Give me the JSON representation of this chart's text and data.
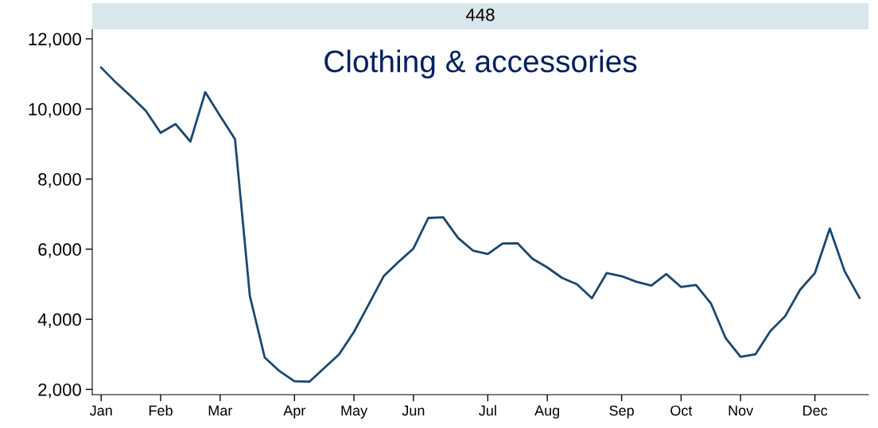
{
  "chart_data": {
    "type": "line",
    "title": "448",
    "subtitle": "Clothing & accessories",
    "categories": [
      "Jan",
      null,
      null,
      null,
      "Feb",
      null,
      null,
      null,
      "Mar",
      null,
      null,
      null,
      null,
      "Apr",
      null,
      null,
      null,
      "May",
      null,
      null,
      null,
      "Jun",
      null,
      null,
      null,
      null,
      "Jul",
      null,
      null,
      null,
      "Aug",
      null,
      null,
      null,
      null,
      "Sep",
      null,
      null,
      null,
      "Oct",
      null,
      null,
      null,
      "Nov",
      null,
      null,
      null,
      null,
      "Dec",
      null,
      null,
      null
    ],
    "series": [
      {
        "color": "#1a476f",
        "values": [
          11180,
          10750,
          10360,
          9950,
          9320,
          9570,
          9070,
          10480,
          9800,
          9140,
          4660,
          2910,
          2520,
          2230,
          2220,
          2610,
          3000,
          3640,
          4430,
          5230,
          5640,
          6020,
          6890,
          6910,
          6320,
          5960,
          5860,
          6160,
          6170,
          5730,
          5480,
          5180,
          5000,
          4600,
          5320,
          5230,
          5070,
          4960,
          5290,
          4920,
          4980,
          4460,
          3460,
          2930,
          3000,
          3660,
          4090,
          4840,
          5320,
          6590,
          5370,
          4610
        ]
      }
    ],
    "ylim": [
      1850,
      12270
    ],
    "yticks": [
      {
        "value": 2000,
        "label": "2,000"
      },
      {
        "value": 4000,
        "label": "4,000"
      },
      {
        "value": 6000,
        "label": "6,000"
      },
      {
        "value": 8000,
        "label": "8,000"
      },
      {
        "value": 10000,
        "label": "10,000"
      },
      {
        "value": 12000,
        "label": "12,000"
      }
    ],
    "grid": false,
    "legend": false,
    "marker": "none",
    "line_style": "solid"
  }
}
